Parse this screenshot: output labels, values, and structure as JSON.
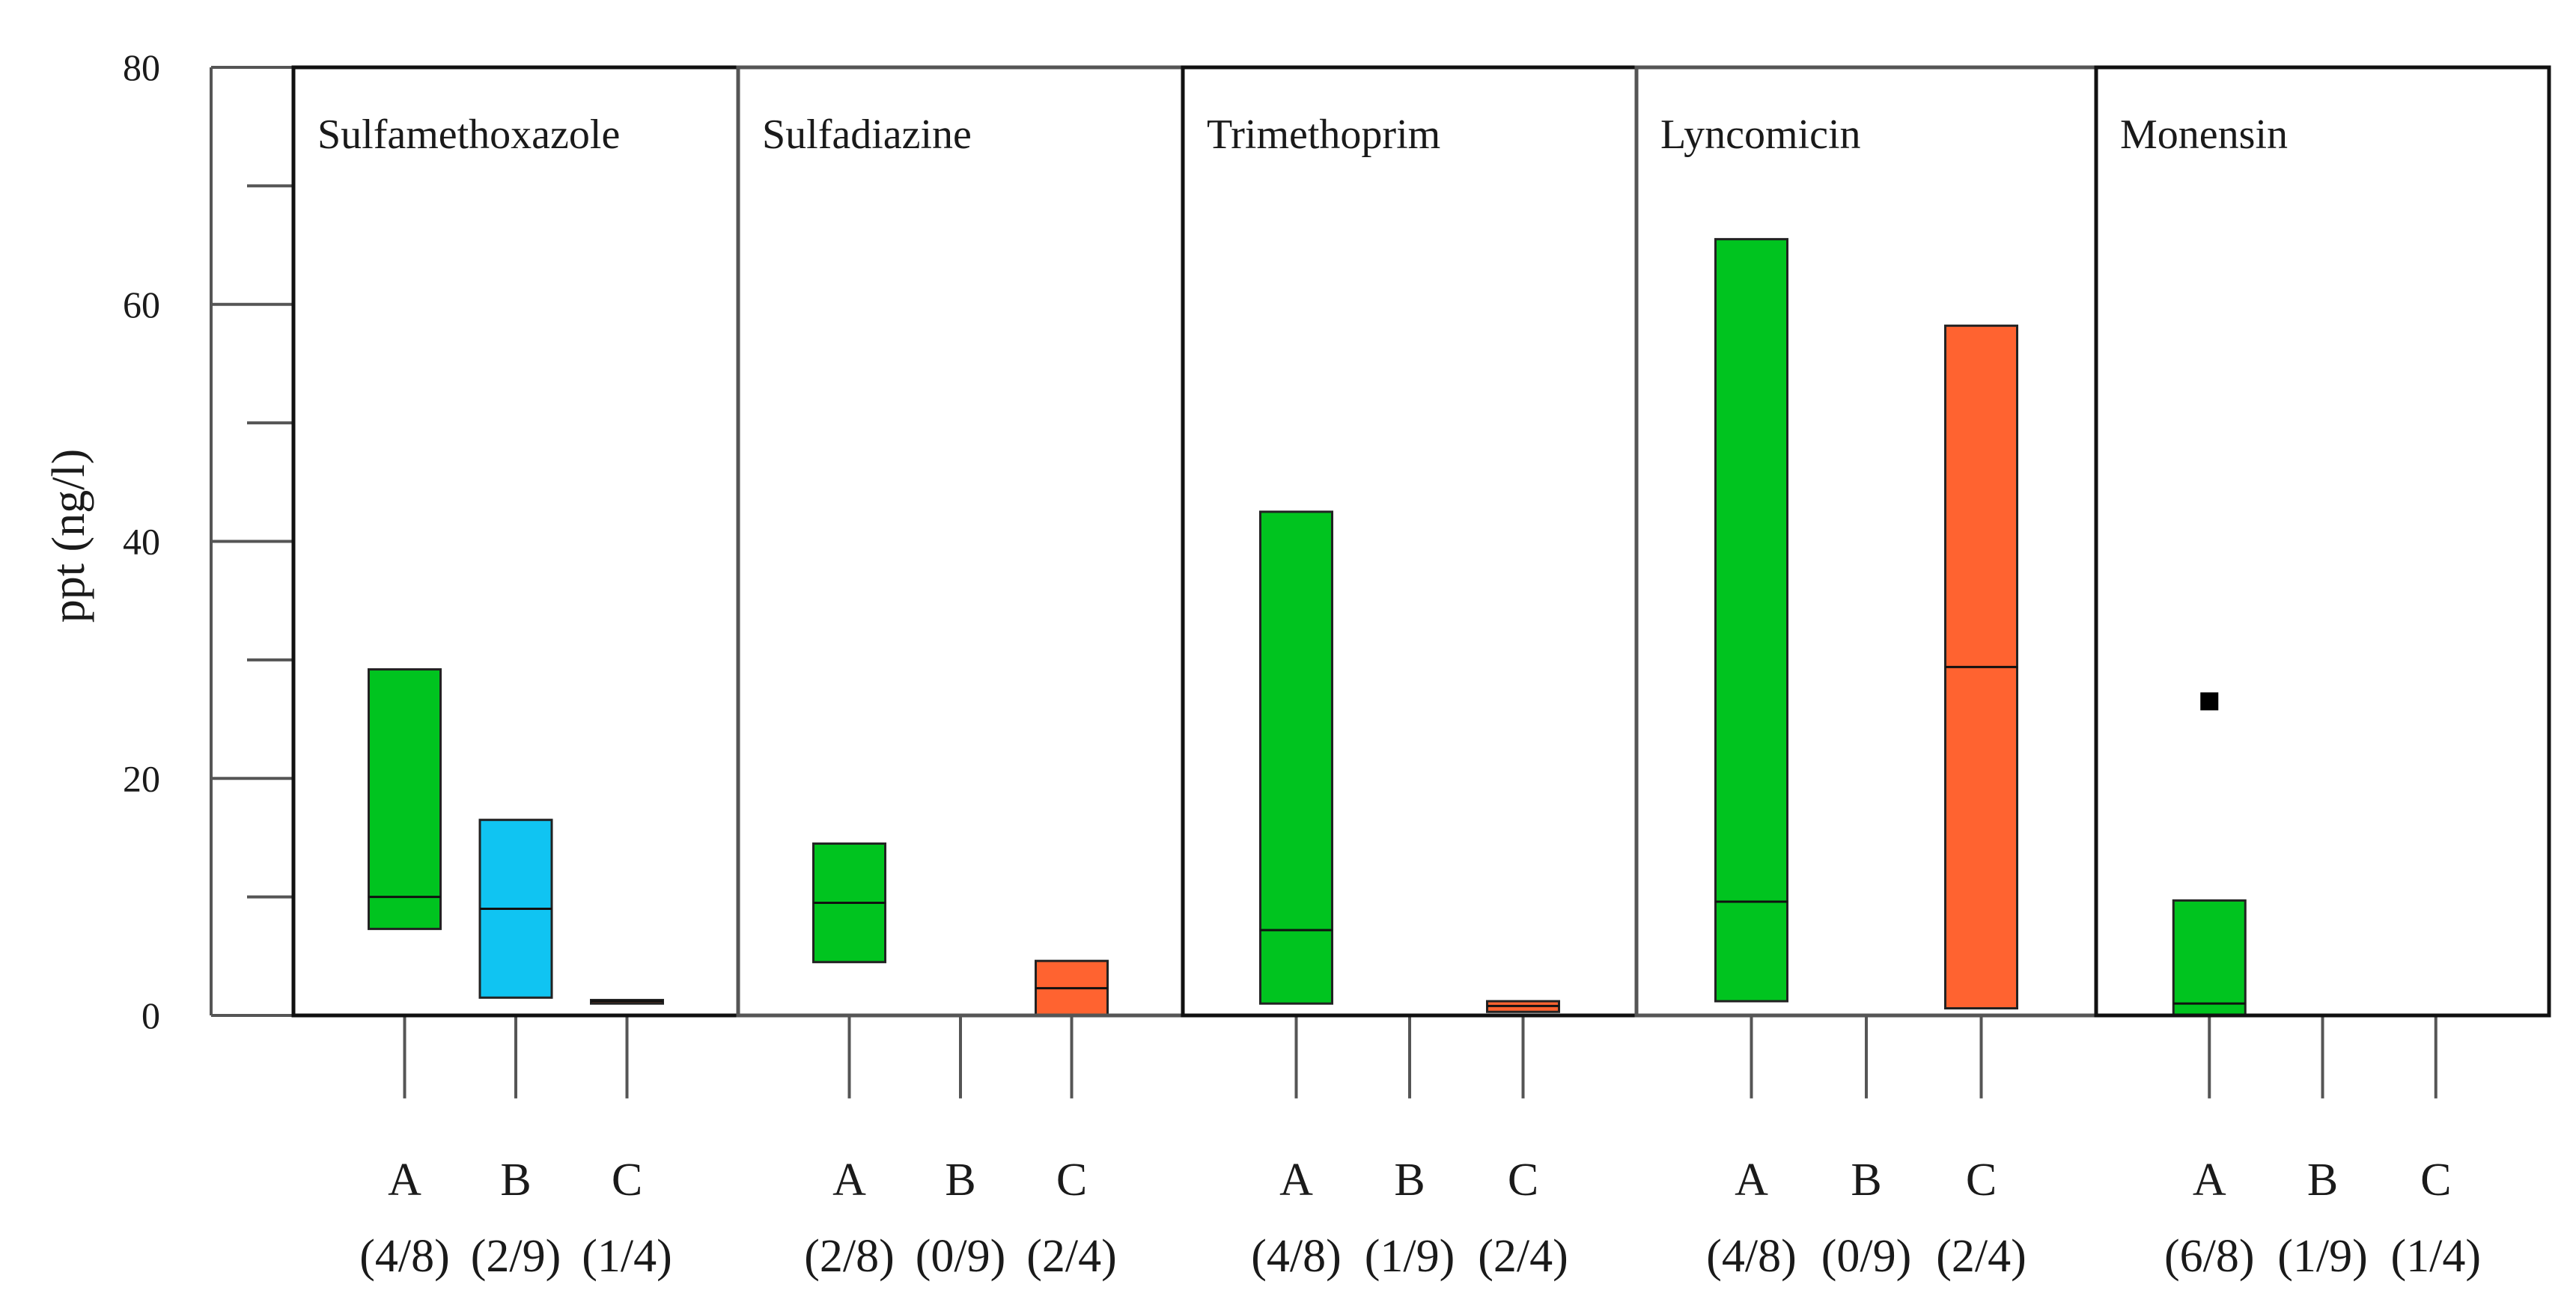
{
  "chart_data": {
    "type": "box",
    "ylabel": "ppt (ng/l)",
    "ylim": [
      0,
      80
    ],
    "yticks": [
      0,
      20,
      40,
      60,
      80
    ],
    "yticks_minor": [
      10,
      30,
      50,
      70
    ],
    "grid": false,
    "colors": {
      "A": "#00c41f",
      "B": "#10c4f2",
      "C": "#ff6330"
    },
    "panels": [
      {
        "title": "Sulfamethoxazole",
        "boxes": [
          {
            "group": "A",
            "count": "(4/8)",
            "whisker_low": -7,
            "q1": 7.3,
            "median": 10,
            "q3": 29.2,
            "whisker_high": 29.2,
            "outliers": []
          },
          {
            "group": "B",
            "count": "(2/9)",
            "whisker_low": -7,
            "q1": 1.5,
            "median": 9,
            "q3": 16.5,
            "whisker_high": 16.5,
            "outliers": []
          },
          {
            "group": "C",
            "count": "(1/4)",
            "whisker_low": -7,
            "q1": 1.0,
            "median": 1.2,
            "q3": 1.3,
            "whisker_high": 1.3,
            "outliers": []
          }
        ]
      },
      {
        "title": "Sulfadiazine",
        "boxes": [
          {
            "group": "A",
            "count": "(2/8)",
            "whisker_low": -7,
            "q1": 4.5,
            "median": 9.5,
            "q3": 14.5,
            "whisker_high": 14.5,
            "outliers": []
          },
          {
            "group": "B",
            "count": "(0/9)",
            "whisker_low": -7,
            "q1": 0,
            "median": 0,
            "q3": 0,
            "whisker_high": 0,
            "outliers": []
          },
          {
            "group": "C",
            "count": "(2/4)",
            "whisker_low": -7,
            "q1": 0,
            "median": 2.3,
            "q3": 4.6,
            "whisker_high": 4.6,
            "outliers": []
          }
        ]
      },
      {
        "title": "Trimethoprim",
        "boxes": [
          {
            "group": "A",
            "count": "(4/8)",
            "whisker_low": -7,
            "q1": 1.0,
            "median": 7.2,
            "q3": 42.5,
            "whisker_high": 42.5,
            "outliers": []
          },
          {
            "group": "B",
            "count": "(1/9)",
            "whisker_low": -7,
            "q1": 0,
            "median": 0,
            "q3": 0,
            "whisker_high": 0,
            "outliers": []
          },
          {
            "group": "C",
            "count": "(2/4)",
            "whisker_low": -7,
            "q1": 0.3,
            "median": 0.8,
            "q3": 1.2,
            "whisker_high": 1.2,
            "outliers": []
          }
        ]
      },
      {
        "title": "Lyncomicin",
        "boxes": [
          {
            "group": "A",
            "count": "(4/8)",
            "whisker_low": -7,
            "q1": 1.2,
            "median": 9.6,
            "q3": 65.5,
            "whisker_high": 65.5,
            "outliers": []
          },
          {
            "group": "B",
            "count": "(0/9)",
            "whisker_low": -7,
            "q1": 0,
            "median": 0,
            "q3": 0,
            "whisker_high": 0,
            "outliers": []
          },
          {
            "group": "C",
            "count": "(2/4)",
            "whisker_low": -7,
            "q1": 0.6,
            "median": 29.4,
            "q3": 58.2,
            "whisker_high": 58.2,
            "outliers": []
          }
        ]
      },
      {
        "title": "Monensin",
        "boxes": [
          {
            "group": "A",
            "count": "(6/8)",
            "whisker_low": -7,
            "q1": 0,
            "median": 1.0,
            "q3": 9.7,
            "whisker_high": 9.7,
            "outliers": [
              26.5
            ]
          },
          {
            "group": "B",
            "count": "(1/9)",
            "whisker_low": -7,
            "q1": 0,
            "median": 0,
            "q3": 0,
            "whisker_high": 0,
            "outliers": []
          },
          {
            "group": "C",
            "count": "(1/4)",
            "whisker_low": -7,
            "q1": 0,
            "median": 0,
            "q3": 0,
            "whisker_high": 0,
            "outliers": []
          }
        ]
      }
    ]
  }
}
